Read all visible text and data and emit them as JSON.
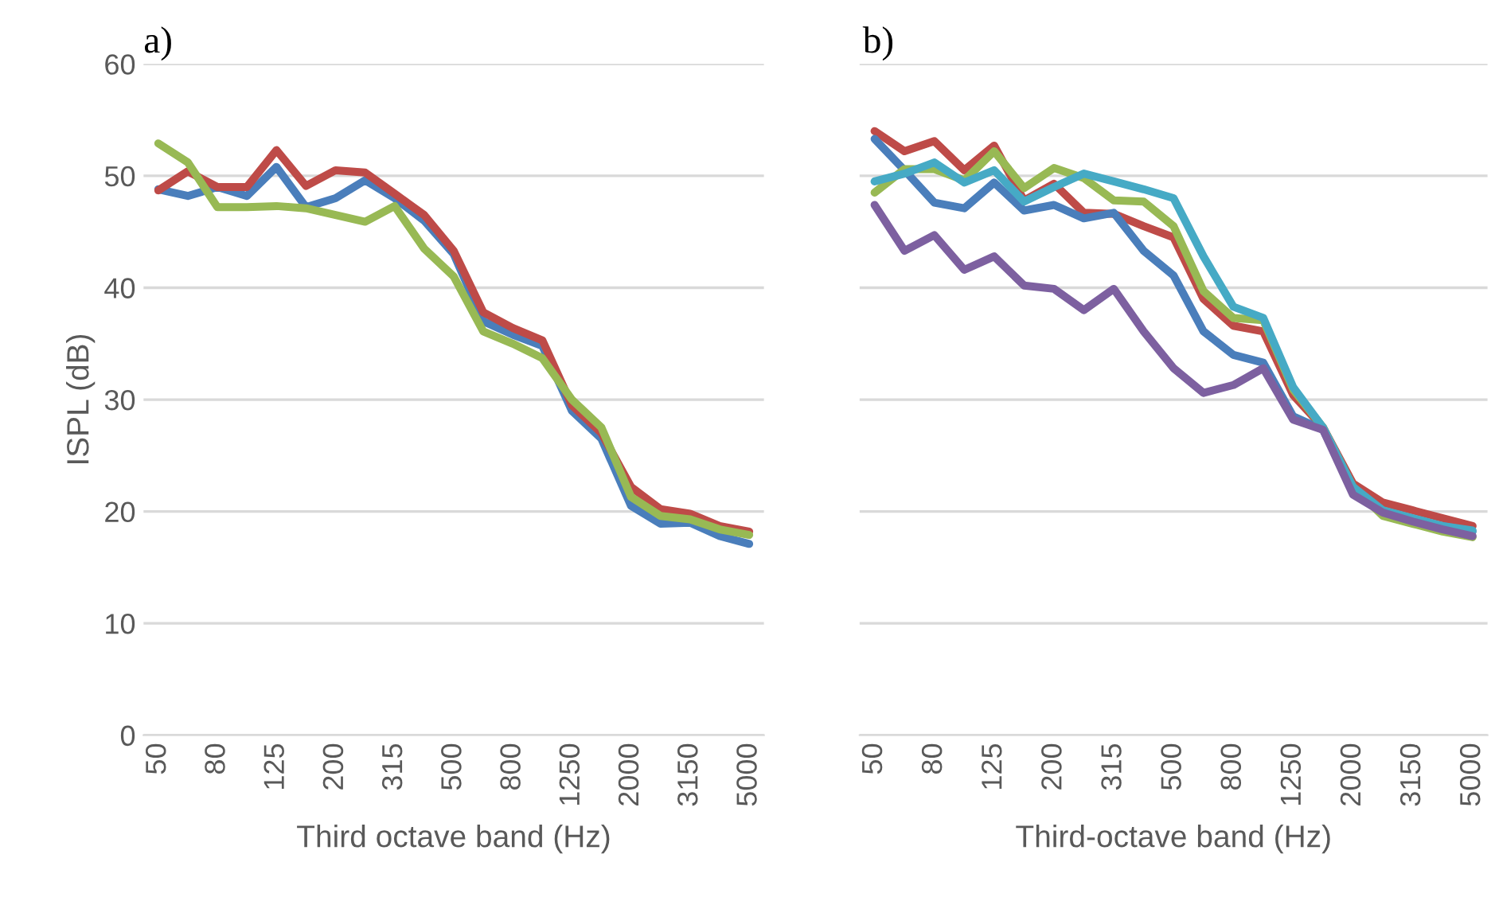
{
  "chart_data": [
    {
      "type": "line",
      "title": "a)",
      "xlabel": "Third octave band (Hz)",
      "ylabel": "ISPL (dB)",
      "categories": [
        "50",
        null,
        "80",
        null,
        "125",
        null,
        "200",
        null,
        "315",
        null,
        "500",
        null,
        "800",
        null,
        "1250",
        null,
        "2000",
        null,
        "3150",
        null,
        "5000"
      ],
      "ylim": [
        0,
        60
      ],
      "yticks": [
        0,
        10,
        20,
        30,
        40,
        50,
        60
      ],
      "grid": "y",
      "marker": "none",
      "line_style": "solid",
      "series": [
        {
          "color": "#4a7ebb",
          "values": [
            48.8,
            48.2,
            49,
            48.2,
            50.8,
            47.2,
            48,
            49.6,
            48,
            46,
            43,
            37,
            35.8,
            34.8,
            29,
            26.5,
            20.5,
            18.9,
            19,
            17.8,
            17.1
          ]
        },
        {
          "color": "#be4b48",
          "values": [
            48.7,
            50.4,
            49,
            49,
            52.3,
            49.1,
            50.5,
            50.3,
            48.4,
            46.5,
            43.3,
            37.8,
            36.4,
            35.3,
            29.5,
            27,
            22.2,
            20.2,
            19.8,
            18.7,
            18.2
          ]
        },
        {
          "color": "#98b954",
          "values": [
            52.9,
            51.2,
            47.2,
            47.2,
            47.3,
            47.1,
            46.5,
            45.9,
            47.3,
            43.5,
            41,
            36.1,
            35,
            33.7,
            30,
            27.5,
            21.3,
            19.6,
            19.3,
            18.4,
            17.9
          ]
        }
      ]
    },
    {
      "type": "line",
      "title": "b)",
      "xlabel": "Third-octave band (Hz)",
      "categories": [
        "50",
        null,
        "80",
        null,
        "125",
        null,
        "200",
        null,
        "315",
        null,
        "500",
        null,
        "800",
        null,
        "1250",
        null,
        "2000",
        null,
        "3150",
        null,
        "5000"
      ],
      "ylim": [
        0,
        60
      ],
      "yticks": [
        0,
        10,
        20,
        30,
        40,
        50,
        60
      ],
      "tick_labels": "x",
      "grid": "y",
      "marker": "none",
      "line_style": "solid",
      "series": [
        {
          "color": "#be4b48",
          "values": [
            54,
            52.2,
            53.1,
            50.5,
            52.7,
            47.8,
            49.3,
            46.7,
            46.6,
            45.5,
            44.5,
            39,
            36.6,
            36.1,
            30.4,
            27.5,
            22.5,
            20.8,
            20.1,
            19.4,
            18.7
          ]
        },
        {
          "color": "#4a7ebb",
          "values": [
            53.3,
            50.5,
            47.6,
            47.1,
            49.4,
            46.9,
            47.4,
            46.2,
            46.7,
            43.3,
            41.1,
            36.1,
            34,
            33.3,
            28.5,
            27.3,
            22,
            19.9,
            19.1,
            18.7,
            18.2
          ]
        },
        {
          "color": "#98b954",
          "values": [
            48.5,
            50.6,
            50.6,
            49.6,
            52.2,
            48.9,
            50.7,
            49.8,
            47.8,
            47.7,
            45.5,
            39.7,
            37.3,
            37.1,
            30.9,
            27.5,
            22.2,
            19.6,
            18.9,
            18.2,
            17.7
          ]
        },
        {
          "color": "#46aac5",
          "values": [
            49.5,
            50.2,
            51.2,
            49.4,
            50.5,
            47.7,
            49,
            50.2,
            49.5,
            48.8,
            48,
            42.8,
            38.3,
            37.3,
            31.1,
            27.5,
            22.2,
            20.1,
            19.4,
            18.7,
            18.3
          ]
        },
        {
          "color": "#7d60a0",
          "values": [
            47.4,
            43.3,
            44.7,
            41.6,
            42.8,
            40.2,
            39.9,
            38,
            39.9,
            36.1,
            32.8,
            30.6,
            31.3,
            32.8,
            28.2,
            27.3,
            21.5,
            19.9,
            19.1,
            18.4,
            17.8
          ]
        }
      ]
    }
  ]
}
